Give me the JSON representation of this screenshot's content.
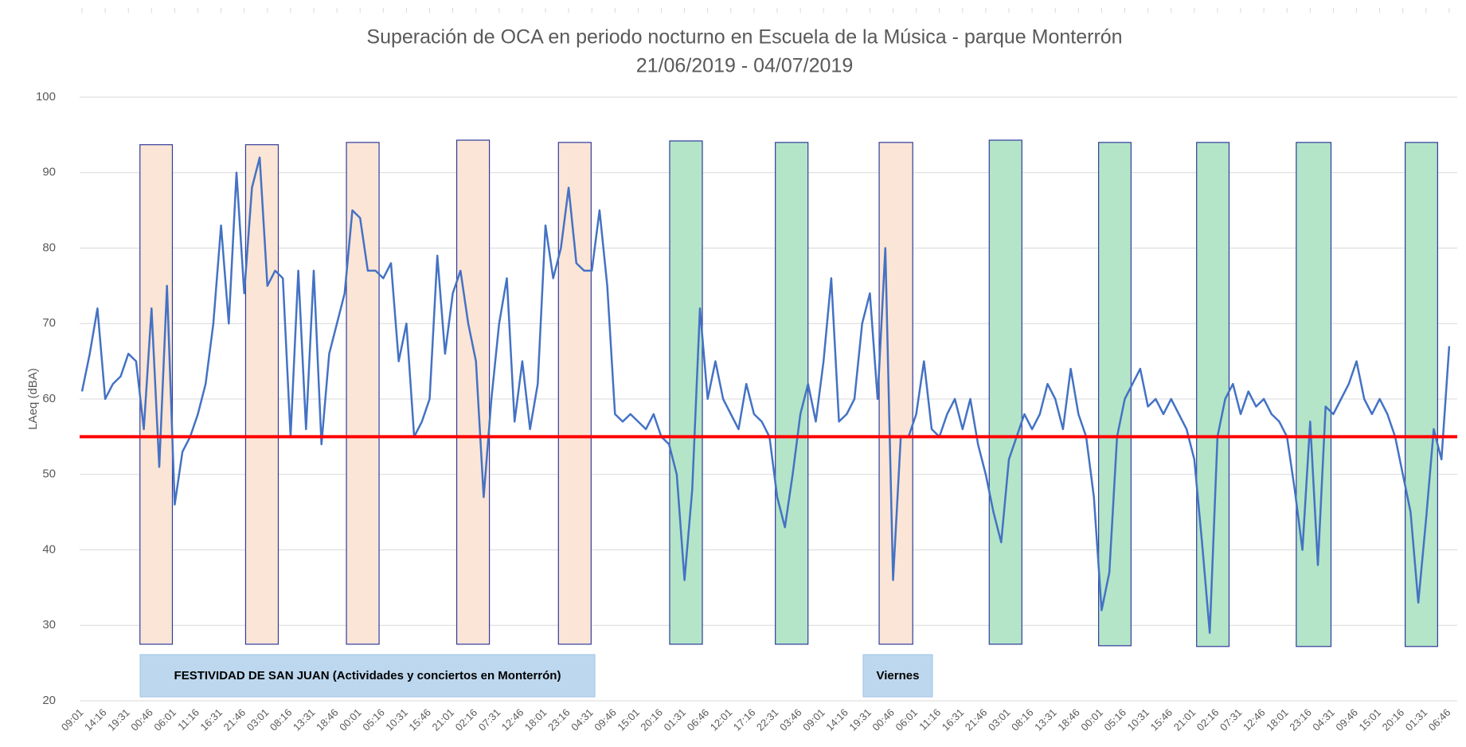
{
  "chart_data": {
    "type": "line",
    "title": "Superación de OCA en periodo nocturno en Escuela de la Música - parque Monterrón",
    "subtitle": "21/06/2019 - 04/07/2019",
    "y_label": "LAeq (dBA)",
    "ylim": [
      20,
      100
    ],
    "yticks": [
      20,
      30,
      40,
      50,
      60,
      70,
      80,
      90,
      100
    ],
    "grid": true,
    "categories": [
      "09:01",
      null,
      null,
      "14:16",
      null,
      null,
      "19:31",
      null,
      null,
      "00:46",
      null,
      null,
      "06:01",
      null,
      null,
      "11:16",
      null,
      null,
      "16:31",
      null,
      null,
      "21:46",
      null,
      null,
      "03:01",
      null,
      null,
      "08:16",
      null,
      null,
      "13:31",
      null,
      null,
      "18:46",
      null,
      null,
      "00:01",
      null,
      null,
      "05:16",
      null,
      null,
      "10:31",
      null,
      null,
      "15:46",
      null,
      null,
      "21:01",
      null,
      null,
      "02:16",
      null,
      null,
      "07:31",
      null,
      null,
      "12:46",
      null,
      null,
      "18:01",
      null,
      null,
      "23:16",
      null,
      null,
      "04:31",
      null,
      null,
      "09:46",
      null,
      null,
      "15:01",
      null,
      null,
      "20:16",
      null,
      null,
      "01:31",
      null,
      null,
      "06:46",
      null,
      null,
      "12:01",
      null,
      null,
      "17:16",
      null,
      null,
      "22:31",
      null,
      null,
      "03:46",
      null,
      null,
      "09:01",
      null,
      null,
      "14:16",
      null,
      null,
      "19:31",
      null,
      null,
      "00:46",
      null,
      null,
      "06:01",
      null,
      null,
      "11:16",
      null,
      null,
      "16:31",
      null,
      null,
      "21:46",
      null,
      null,
      "03:01",
      null,
      null,
      "08:16",
      null,
      null,
      "13:31",
      null,
      null,
      "18:46",
      null,
      null,
      "00:01",
      null,
      null,
      "05:16",
      null,
      null,
      "10:31",
      null,
      null,
      "15:46",
      null,
      null,
      "21:01",
      null,
      null,
      "02:16",
      null,
      null,
      "07:31",
      null,
      null,
      "12:46",
      null,
      null,
      "18:01",
      null,
      null,
      "23:16",
      null,
      null,
      "04:31",
      null,
      null,
      "09:46",
      null,
      null,
      "15:01",
      null,
      null,
      "20:16",
      null,
      null,
      "01:31",
      null,
      null,
      "06:46"
    ],
    "series": [
      {
        "name": "LAeq",
        "color": "#4472c4",
        "values": [
          61,
          66,
          72,
          60,
          62,
          63,
          66,
          65,
          56,
          72,
          51,
          75,
          46,
          53,
          55,
          58,
          62,
          70,
          83,
          70,
          90,
          74,
          88,
          92,
          75,
          77,
          76,
          55,
          77,
          56,
          77,
          54,
          66,
          70,
          74,
          85,
          84,
          77,
          77,
          76,
          78,
          65,
          70,
          55,
          57,
          60,
          79,
          66,
          74,
          77,
          70,
          65,
          47,
          60,
          70,
          76,
          57,
          65,
          56,
          62,
          83,
          76,
          80,
          88,
          78,
          77,
          77,
          85,
          75,
          58,
          57,
          58,
          57,
          56,
          58,
          55,
          54,
          50,
          36,
          48,
          72,
          60,
          65,
          60,
          58,
          56,
          62,
          58,
          57,
          55,
          47,
          43,
          50,
          58,
          62,
          57,
          65,
          76,
          57,
          58,
          60,
          70,
          74,
          60,
          80,
          36,
          55,
          55,
          58,
          65,
          56,
          55,
          58,
          60,
          56,
          60,
          54,
          50,
          45,
          41,
          52,
          55,
          58,
          56,
          58,
          62,
          60,
          56,
          64,
          58,
          55,
          47,
          32,
          37,
          55,
          60,
          62,
          64,
          59,
          60,
          58,
          60,
          58,
          56,
          52,
          41,
          29,
          55,
          60,
          62,
          58,
          61,
          59,
          60,
          58,
          57,
          55,
          48,
          40,
          57,
          38,
          59,
          58,
          60,
          62,
          65,
          60,
          58,
          60,
          58,
          55,
          50,
          45,
          33,
          44,
          56,
          52,
          67
        ]
      }
    ],
    "reference_line": {
      "value": 55,
      "color": "#ff0000"
    },
    "highlights": [
      {
        "x": [
          2.5,
          3.9
        ],
        "y": [
          27.5,
          93.7
        ],
        "color": "#fbe5d6"
      },
      {
        "x": [
          7.06,
          8.47
        ],
        "y": [
          27.5,
          93.7
        ],
        "color": "#fbe5d6"
      },
      {
        "x": [
          11.41,
          12.82
        ],
        "y": [
          27.5,
          94
        ],
        "color": "#fbe5d6"
      },
      {
        "x": [
          16.17,
          17.58
        ],
        "y": [
          27.5,
          94.3
        ],
        "color": "#fbe5d6"
      },
      {
        "x": [
          20.56,
          21.97
        ],
        "y": [
          27.5,
          94
        ],
        "color": "#fbe5d6"
      },
      {
        "x": [
          25.36,
          26.77
        ],
        "y": [
          27.5,
          94.2
        ],
        "color": "#b4e5c8"
      },
      {
        "x": [
          29.92,
          31.33
        ],
        "y": [
          27.5,
          94
        ],
        "color": "#b4e5c8"
      },
      {
        "x": [
          34.4,
          35.85
        ],
        "y": [
          27.5,
          94
        ],
        "color": "#fbe5d6"
      },
      {
        "x": [
          39.15,
          40.56
        ],
        "y": [
          27.5,
          94.3
        ],
        "color": "#b4e5c8"
      },
      {
        "x": [
          43.87,
          45.27
        ],
        "y": [
          27.3,
          94
        ],
        "color": "#b4e5c8"
      },
      {
        "x": [
          48.1,
          49.5
        ],
        "y": [
          27.2,
          94
        ],
        "color": "#b4e5c8"
      },
      {
        "x": [
          52.4,
          53.9
        ],
        "y": [
          27.2,
          94
        ],
        "color": "#b4e5c8"
      },
      {
        "x": [
          57.1,
          58.5
        ],
        "y": [
          27.2,
          94
        ],
        "color": "#b4e5c8"
      }
    ],
    "annotations": [
      {
        "text": "FESTIVIDAD DE SAN JUAN (Actividades y conciertos en Monterrón)"
      },
      {
        "text": "Viernes"
      }
    ]
  }
}
